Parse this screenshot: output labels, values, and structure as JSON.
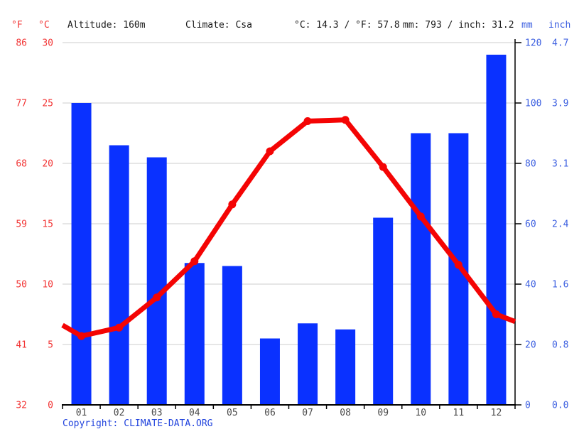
{
  "header": {
    "temp_unit_f": "°F",
    "temp_unit_c": "°C",
    "altitude": "Altitude: 160m",
    "climate": "Climate: Csa",
    "avg_temp": "°C: 14.3 / °F: 57.8",
    "total_precip": "mm: 793 / inch: 31.2",
    "precip_unit_mm": "mm",
    "precip_unit_inch": "inch"
  },
  "chart_data": {
    "type": "bar+line",
    "categories": [
      "01",
      "02",
      "03",
      "04",
      "05",
      "06",
      "07",
      "08",
      "09",
      "10",
      "11",
      "12"
    ],
    "series": [
      {
        "name": "precipitation_mm",
        "type": "bar",
        "color": "#0a31ff",
        "values": [
          100,
          86,
          82,
          47,
          46,
          22,
          27,
          25,
          62,
          90,
          90,
          116
        ]
      },
      {
        "name": "temperature_c",
        "type": "line",
        "color": "#f40404",
        "values": [
          5.7,
          6.4,
          8.9,
          11.9,
          16.6,
          21.0,
          23.5,
          23.6,
          19.7,
          15.6,
          11.6,
          7.5
        ],
        "edge_left": 6.6,
        "edge_right": 6.9
      }
    ],
    "axes": {
      "temp_c_ticks": [
        "30",
        "25",
        "20",
        "15",
        "10",
        "5",
        "0"
      ],
      "temp_f_ticks": [
        "86",
        "77",
        "68",
        "59",
        "50",
        "41",
        "32"
      ],
      "precip_mm_ticks": [
        "120",
        "100",
        "80",
        "60",
        "40",
        "20",
        "0"
      ],
      "precip_inch_ticks": [
        "4.7",
        "3.9",
        "3.1",
        "2.4",
        "1.6",
        "0.8",
        "0.0"
      ],
      "temp_c_range": [
        0,
        30
      ],
      "precip_mm_range": [
        0,
        120
      ]
    },
    "grid": true,
    "legend": "none",
    "colors": {
      "temp_axis_labels": "#f23535",
      "precip_axis_labels": "#3c5fe0",
      "gridline": "#cccccc",
      "axis": "#000000",
      "month_labels": "#4a4a4a"
    }
  },
  "footer": {
    "copyright_label": "Copyright:",
    "link_text": "CLIMATE-DATA.ORG"
  }
}
